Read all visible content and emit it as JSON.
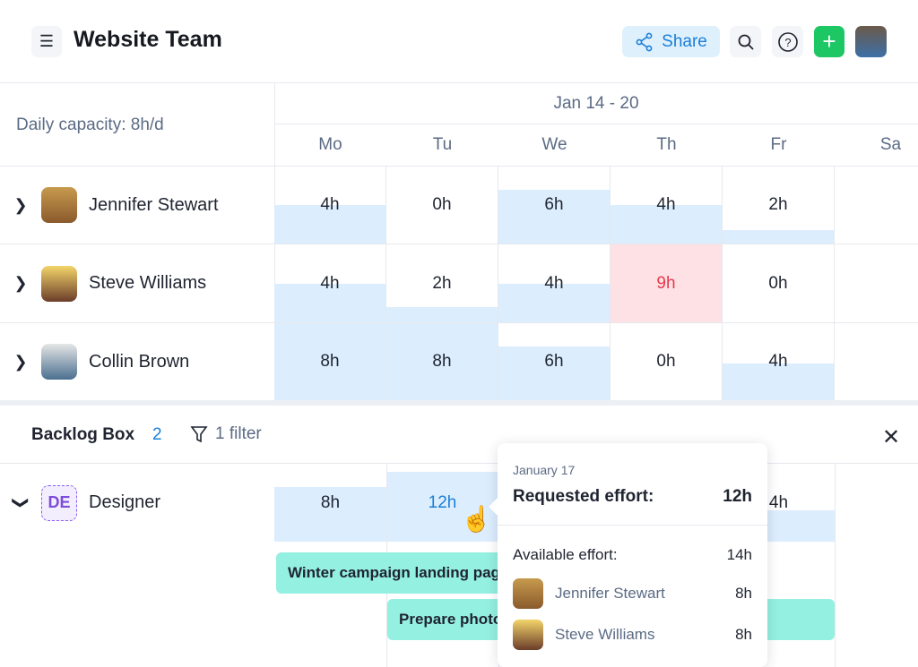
{
  "header": {
    "title": "Website Team",
    "share_label": "Share",
    "icons": [
      "menu-icon",
      "share-icon",
      "search-icon",
      "help-icon",
      "plus-icon",
      "avatar"
    ],
    "accent": "#1a7fd8",
    "add_color": "#1dc764"
  },
  "schedule": {
    "capacity_label": "Daily capacity: 8h/d",
    "week_label": "Jan 14 - 20",
    "days": [
      "Mo",
      "Tu",
      "We",
      "Th",
      "Fr",
      "Sa"
    ],
    "people": [
      {
        "name": "Jennifer Stewart",
        "hours": [
          "4h",
          "0h",
          "6h",
          "4h",
          "2h",
          ""
        ],
        "fill": [
          0.5,
          0,
          0.7,
          0.5,
          0.18,
          0
        ],
        "over": [
          false,
          false,
          false,
          false,
          false,
          false
        ]
      },
      {
        "name": "Steve Williams",
        "hours": [
          "4h",
          "2h",
          "4h",
          "9h",
          "0h",
          ""
        ],
        "fill": [
          0.5,
          0.2,
          0.5,
          1,
          0,
          0
        ],
        "over": [
          false,
          false,
          false,
          true,
          false,
          false
        ]
      },
      {
        "name": "Collin Brown",
        "hours": [
          "8h",
          "8h",
          "6h",
          "0h",
          "4h",
          ""
        ],
        "fill": [
          1,
          1,
          0.7,
          0,
          0.48,
          0
        ],
        "over": [
          false,
          false,
          false,
          false,
          false,
          false
        ]
      }
    ],
    "over_color": "#fde1e4",
    "over_text": "#e8394d",
    "fill_color": "#dcedfd"
  },
  "backlog": {
    "title": "Backlog Box",
    "count": "2",
    "filter_label": "1 filter",
    "role": {
      "initials": "DE",
      "name": "Designer",
      "hours": [
        "8h",
        "12h",
        "",
        "",
        "4h",
        ""
      ],
      "fill": [
        0.7,
        0.9,
        0,
        0,
        0.4,
        0
      ]
    },
    "tasks": [
      {
        "label": "Winter campaign landing page"
      },
      {
        "label": "Prepare photos"
      }
    ]
  },
  "tooltip": {
    "date": "January 17",
    "requested_label": "Requested effort:",
    "requested_value": "12h",
    "available_label": "Available effort:",
    "available_value": "14h",
    "people": [
      {
        "name": "Jennifer Stewart",
        "hours": "8h"
      },
      {
        "name": "Steve Williams",
        "hours": "8h"
      }
    ]
  }
}
